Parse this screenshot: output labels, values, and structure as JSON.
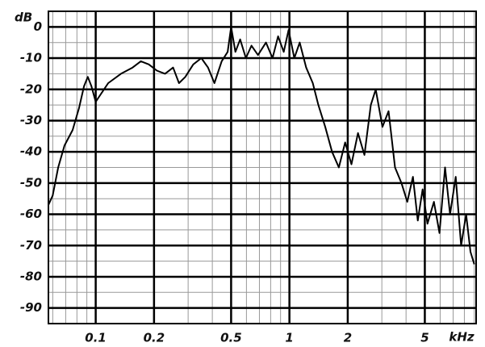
{
  "chart_data": {
    "type": "line",
    "x_label": "kHz",
    "y_label": "dB",
    "log_x": true,
    "grid": true,
    "color": "#000000",
    "x": [
      0.057,
      0.06,
      0.064,
      0.069,
      0.076,
      0.082,
      0.087,
      0.091,
      0.095,
      0.1,
      0.105,
      0.116,
      0.135,
      0.155,
      0.171,
      0.188,
      0.207,
      0.228,
      0.251,
      0.269,
      0.29,
      0.319,
      0.351,
      0.38,
      0.41,
      0.447,
      0.48,
      0.5,
      0.526,
      0.557,
      0.596,
      0.637,
      0.688,
      0.757,
      0.818,
      0.874,
      0.935,
      0.99,
      1.06,
      1.13,
      1.22,
      1.32,
      1.41,
      1.53,
      1.66,
      1.8,
      1.94,
      2.09,
      2.26,
      2.44,
      2.63,
      2.79,
      3.02,
      3.25,
      3.51,
      3.79,
      4.06,
      4.34,
      4.6,
      4.87,
      5.16,
      5.57,
      5.95,
      6.36,
      6.75,
      7.22,
      7.7,
      8.17,
      8.6,
      9.0
    ],
    "values": [
      -57,
      -54,
      -45,
      -38,
      -33,
      -26,
      -19,
      -16,
      -19,
      -24,
      -22,
      -18,
      -15,
      -13,
      -11,
      -12,
      -14,
      -15,
      -13,
      -18,
      -16,
      -12,
      -10,
      -13,
      -18,
      -11,
      -8,
      0,
      -8,
      -4,
      -10,
      -6,
      -9,
      -5,
      -10,
      -3,
      -8,
      -1,
      -10,
      -5,
      -13,
      -18,
      -25,
      -32,
      -40,
      -45,
      -37,
      -44,
      -34,
      -41,
      -25,
      -20,
      -32,
      -27,
      -45,
      -50,
      -56,
      -48,
      -62,
      -52,
      -63,
      -56,
      -66,
      -45,
      -60,
      -48,
      -70,
      -60,
      -72,
      -76
    ],
    "xlim": [
      0.057,
      9.2
    ],
    "ylim": [
      -95,
      5
    ],
    "xticks": [
      0.1,
      0.2,
      0.5,
      1,
      2,
      5
    ],
    "yticks": [
      0,
      -10,
      -20,
      -30,
      -40,
      -50,
      -60,
      -70,
      -80,
      -90
    ],
    "x_minor_grid": [
      0.06,
      0.07,
      0.08,
      0.09,
      0.3,
      0.4,
      0.6,
      0.7,
      0.8,
      0.9,
      3,
      4,
      6,
      7,
      8,
      9
    ],
    "y_minor_grid": [
      -5,
      -15,
      -25,
      -35,
      -45,
      -55,
      -65,
      -75,
      -85
    ]
  }
}
